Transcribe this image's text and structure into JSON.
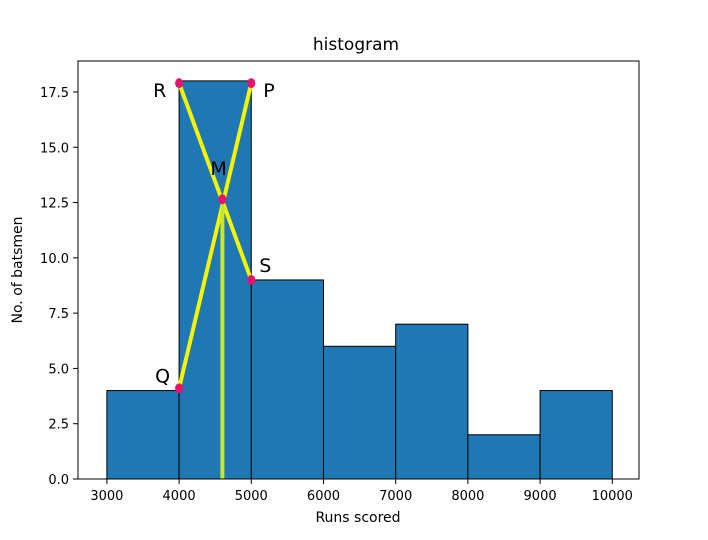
{
  "chart_data": {
    "type": "bar",
    "title": "histogram",
    "xlabel": "Runs scored",
    "ylabel": "No. of batsmen",
    "bins": [
      {
        "start": 3000,
        "end": 4000,
        "count": 4
      },
      {
        "start": 4000,
        "end": 5000,
        "count": 18
      },
      {
        "start": 5000,
        "end": 6000,
        "count": 9
      },
      {
        "start": 6000,
        "end": 7000,
        "count": 6
      },
      {
        "start": 7000,
        "end": 8000,
        "count": 7
      },
      {
        "start": 8000,
        "end": 9000,
        "count": 2
      },
      {
        "start": 9000,
        "end": 10000,
        "count": 4
      }
    ],
    "xlim": [
      2600,
      10370
    ],
    "ylim": [
      0,
      18.9
    ],
    "xticks": [
      3000,
      4000,
      5000,
      6000,
      7000,
      8000,
      9000,
      10000
    ],
    "yticks": [
      0.0,
      2.5,
      5.0,
      7.5,
      10.0,
      12.5,
      15.0,
      17.5
    ],
    "ytick_labels": [
      "0.0",
      "2.5",
      "5.0",
      "7.5",
      "10.0",
      "12.5",
      "15.0",
      "17.5"
    ],
    "grid": false,
    "colors": {
      "bar": "#1f77b4",
      "bar_edge": "#000000",
      "construction_line": "#f5f500",
      "mode_line": "#c5e632",
      "point": "#e8126e"
    },
    "annotation_points": [
      {
        "label": "R",
        "x": 4000,
        "y": 17.9
      },
      {
        "label": "P",
        "x": 5000,
        "y": 17.9
      },
      {
        "label": "M",
        "x": 4600,
        "y": 12.65
      },
      {
        "label": "S",
        "x": 5000,
        "y": 9
      },
      {
        "label": "Q",
        "x": 4000,
        "y": 4.1
      }
    ],
    "construction_lines": [
      [
        "R",
        "S"
      ],
      [
        "Q",
        "P"
      ]
    ],
    "mode_line": {
      "x": 4600,
      "from_point": "M",
      "to_y": 0
    }
  }
}
